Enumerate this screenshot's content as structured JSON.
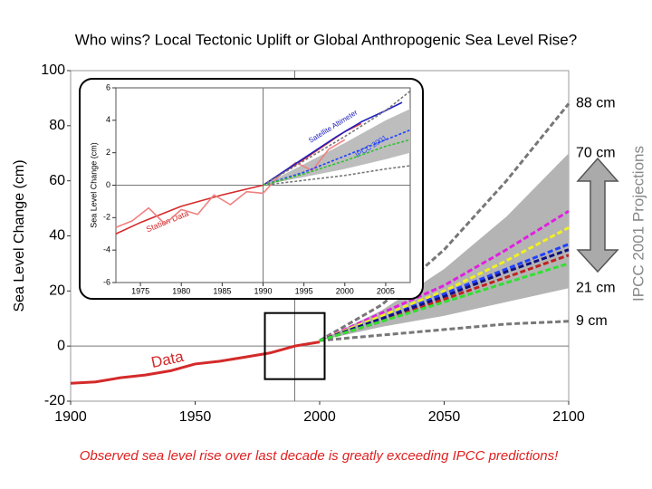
{
  "chart_data": [
    {
      "type": "line",
      "title": "Who wins? Local Tectonic Uplift or Global Anthropogenic Sea Level Rise?",
      "note": "Observed sea level rise over last decade is greatly exceeding IPCC predictions!",
      "ylabel": "Sea Level Change (cm)",
      "side_label": "IPCC 2001 Projections",
      "xlim": [
        1900,
        2100
      ],
      "xticks": [
        1900,
        1950,
        2000,
        2050,
        2100
      ],
      "ylim": [
        -20,
        100
      ],
      "yticks": [
        -20,
        0,
        20,
        40,
        60,
        80,
        100
      ],
      "reference_lines": {
        "x": 1990,
        "y": 0
      },
      "zoom_box": {
        "x": [
          1978,
          2002
        ],
        "y": [
          -12,
          12
        ]
      },
      "band": {
        "color": "#b4b4b4",
        "x": [
          2000,
          2025,
          2050,
          2075,
          2100
        ],
        "low": [
          2,
          7,
          11,
          16,
          21
        ],
        "high": [
          2,
          13,
          28,
          47,
          70
        ]
      },
      "series": [
        {
          "name": "Data",
          "color": "#d42a2a",
          "x": [
            1900,
            1910,
            1920,
            1930,
            1940,
            1950,
            1960,
            1970,
            1980,
            1990,
            2000
          ],
          "values": [
            -13.5,
            -13,
            -11.5,
            -10.5,
            -9,
            -6.5,
            -5.5,
            -4,
            -2.5,
            0,
            1.5
          ]
        },
        {
          "color": "#777777",
          "dash": true,
          "x": [
            2000,
            2025,
            2050,
            2075,
            2100
          ],
          "values": [
            2,
            15,
            35,
            60,
            88
          ]
        },
        {
          "color": "#777777",
          "dash": true,
          "x": [
            2000,
            2025,
            2050,
            2075,
            2100
          ],
          "values": [
            2,
            4,
            6,
            8,
            9
          ]
        },
        {
          "color": "#e020e0",
          "dash": true,
          "x": [
            2000,
            2025,
            2050,
            2075,
            2100
          ],
          "values": [
            2,
            12,
            22,
            35,
            49
          ]
        },
        {
          "color": "#f0f020",
          "dash": true,
          "x": [
            2000,
            2025,
            2050,
            2075,
            2100
          ],
          "values": [
            2,
            11,
            20,
            31,
            43
          ]
        },
        {
          "color": "#2040ff",
          "dash": true,
          "x": [
            2000,
            2025,
            2050,
            2075,
            2100
          ],
          "values": [
            2,
            10,
            19,
            28,
            37
          ]
        },
        {
          "color": "#101080",
          "dash": true,
          "x": [
            2000,
            2025,
            2050,
            2075,
            2100
          ],
          "values": [
            2,
            10,
            18,
            27,
            35
          ]
        },
        {
          "color": "#c02020",
          "dash": true,
          "x": [
            2000,
            2025,
            2050,
            2075,
            2100
          ],
          "values": [
            2,
            9,
            17,
            25,
            33
          ]
        },
        {
          "color": "#30e030",
          "dash": true,
          "x": [
            2000,
            2025,
            2050,
            2075,
            2100
          ],
          "values": [
            2,
            9,
            16,
            23,
            30
          ]
        }
      ],
      "right_labels": [
        {
          "value": 88,
          "label": "88 cm"
        },
        {
          "value": 70,
          "label": "70 cm"
        },
        {
          "value": 21,
          "label": "21 cm"
        },
        {
          "value": 9,
          "label": "9 cm"
        }
      ]
    },
    {
      "type": "line",
      "ylabel": "Sea Level Change (cm)",
      "xlim": [
        1972,
        2008
      ],
      "xticks": [
        1975,
        1980,
        1985,
        1990,
        1995,
        2000,
        2005
      ],
      "ylim": [
        -6,
        6
      ],
      "yticks": [
        -6,
        -4,
        -2,
        0,
        2,
        4,
        6
      ],
      "reference_lines": {
        "x": 1990,
        "y": 0
      },
      "band": {
        "color": "#bdbdbd",
        "x": [
          1990,
          1995,
          2000,
          2005,
          2008
        ],
        "low": [
          0,
          0.5,
          1,
          1.6,
          2
        ],
        "high": [
          0,
          1.3,
          2.6,
          4,
          4.7
        ]
      },
      "series": [
        {
          "name": "Station Data",
          "color": "#d42a2a",
          "x": [
            1972,
            1975,
            1980,
            1985,
            1990,
            1995,
            2000,
            2002
          ],
          "values": [
            -3,
            -2.3,
            -1.3,
            -0.6,
            0,
            1.6,
            3.3,
            3.8
          ]
        },
        {
          "color": "#f08080",
          "x": [
            1972,
            1974,
            1976,
            1978,
            1980,
            1982,
            1984,
            1986,
            1988,
            1990,
            1992,
            1994,
            1996,
            1998,
            2000
          ],
          "values": [
            -2.6,
            -2.2,
            -1.4,
            -2.4,
            -1.5,
            -1.8,
            -0.6,
            -1.2,
            -0.4,
            -0.5,
            0.6,
            1.4,
            0.9,
            2.2,
            2.8
          ]
        },
        {
          "name": "Satellite Altimeter",
          "color": "#2020c0",
          "x": [
            1990,
            1993,
            1996,
            1999,
            2002,
            2005,
            2007
          ],
          "values": [
            0,
            1,
            2,
            3,
            3.9,
            4.6,
            5.1
          ]
        },
        {
          "color": "#777777",
          "dash": true,
          "x": [
            1990,
            1995,
            2000,
            2005,
            2008
          ],
          "values": [
            0,
            1.5,
            3,
            4.6,
            5.8
          ]
        },
        {
          "color": "#777777",
          "dash": true,
          "x": [
            1990,
            1995,
            2000,
            2005,
            2008
          ],
          "values": [
            0,
            0.3,
            0.6,
            1,
            1.2
          ]
        },
        {
          "name": "IPCC 2001",
          "color": "#2040ff",
          "dash": true,
          "x": [
            1990,
            1995,
            2000,
            2005,
            2008
          ],
          "values": [
            0,
            0.8,
            1.8,
            2.8,
            3.4
          ]
        },
        {
          "color": "#30c030",
          "dash": true,
          "x": [
            1990,
            1995,
            2000,
            2005,
            2008
          ],
          "values": [
            0,
            0.7,
            1.5,
            2.4,
            2.8
          ]
        }
      ]
    }
  ]
}
